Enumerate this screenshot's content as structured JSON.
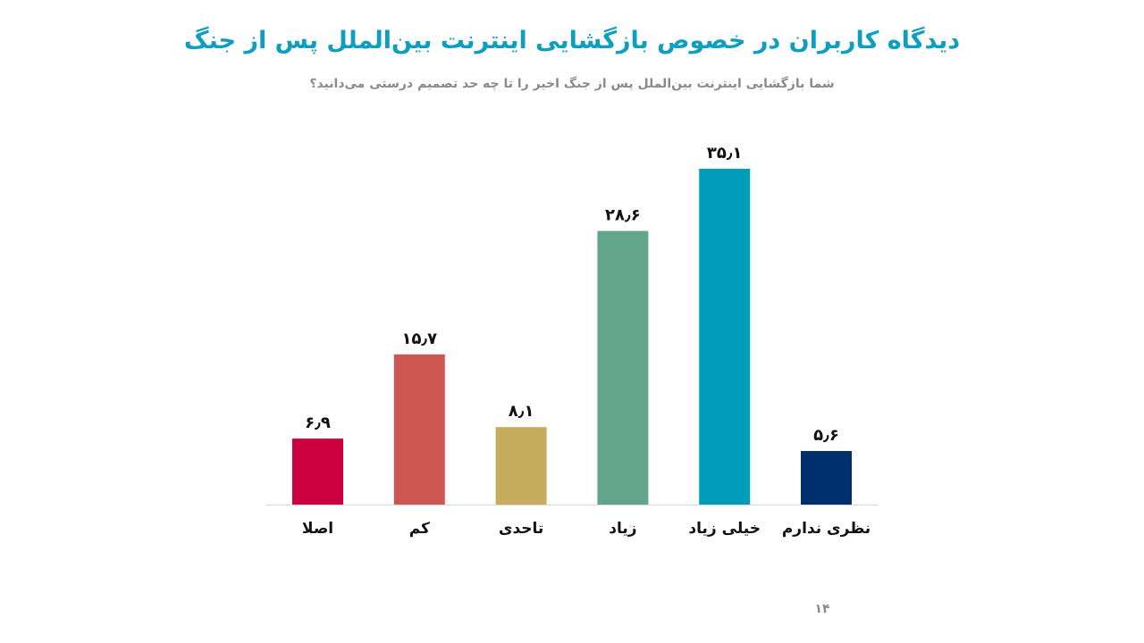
{
  "slide": {
    "title": "دیدگاه کاربران در خصوص بازگشایی اینترنت بین‌الملل پس از جنگ",
    "subtitle": "شما بازگشایی اینترنت بین‌الملل پس از جنگ اخیر را تا چه حد تصمیم درستی می‌دانید؟",
    "page_number": "۱۴",
    "title_color": "#0e9ec0",
    "axis_color": "#d9d9d9",
    "label_color": "#111111"
  },
  "chart_data": {
    "type": "bar",
    "title": "دیدگاه کاربران در خصوص بازگشایی اینترنت بین‌الملل پس از جنگ",
    "subtitle": "شما بازگشایی اینترنت بین‌الملل پس از جنگ اخیر را تا چه حد تصمیم درستی می‌دانید؟",
    "xlabel": "",
    "ylabel": "",
    "categories": [
      "اصلا",
      "کم",
      "تاحدی",
      "زیاد",
      "خیلی زیاد",
      "نظری ندارم"
    ],
    "values": [
      6.9,
      15.7,
      8.1,
      28.6,
      35.1,
      5.6
    ],
    "value_labels": [
      "۶٫۹",
      "۱۵٫۷",
      "۸٫۱",
      "۲۸٫۶",
      "۳۵٫۱",
      "۵٫۶"
    ],
    "colors": [
      "#cc0040",
      "#cc5651",
      "#c7ab5e",
      "#63a58a",
      "#009cbc",
      "#002f6e"
    ],
    "ylim": [
      0,
      35.1
    ],
    "grid": false,
    "legend": "none"
  }
}
